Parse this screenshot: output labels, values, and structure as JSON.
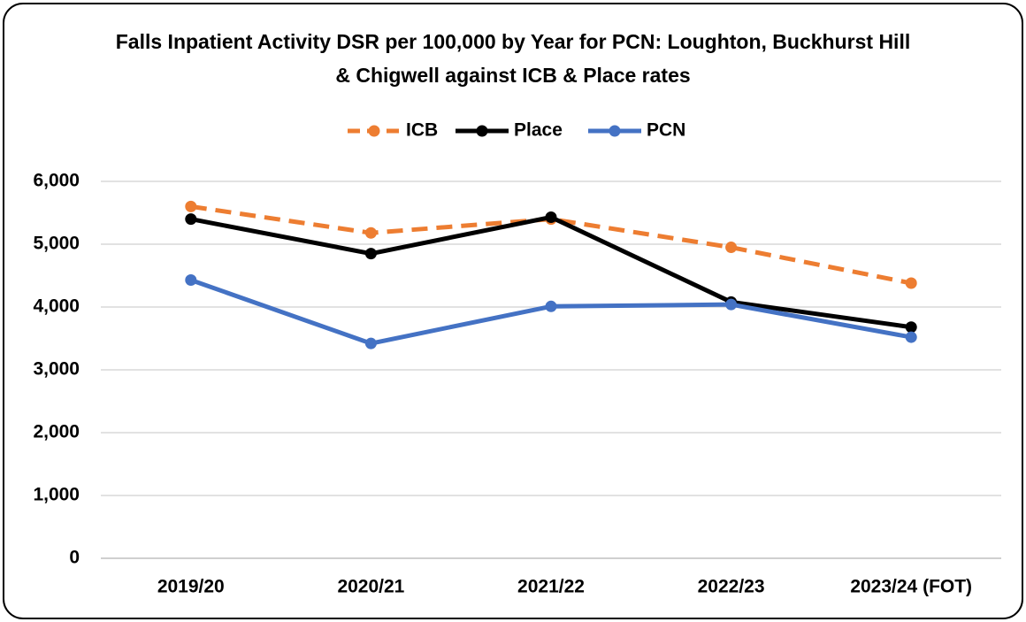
{
  "chart_data": {
    "type": "line",
    "title": "Falls Inpatient Activity DSR per 100,000 by Year for PCN: Loughton, Buckhurst Hill & Chigwell against ICB & Place rates",
    "categories": [
      "2019/20",
      "2020/21",
      "2021/22",
      "2022/23",
      "2023/24 (FOT)"
    ],
    "series": [
      {
        "name": "ICB",
        "color": "#ed7d31",
        "line_style": "dashed",
        "values": [
          5600,
          5180,
          5400,
          4950,
          4380
        ]
      },
      {
        "name": "Place",
        "color": "#000000",
        "line_style": "solid",
        "values": [
          5400,
          4850,
          5430,
          4080,
          3680
        ]
      },
      {
        "name": "PCN",
        "color": "#4472c4",
        "line_style": "solid",
        "values": [
          4430,
          3420,
          4010,
          4040,
          3520
        ]
      }
    ],
    "ylim": [
      0,
      6000
    ],
    "yticks": [
      0,
      {
        "value": 1000,
        "label": "1,000"
      },
      {
        "value": 2000,
        "label": "2,000"
      },
      {
        "value": 3000,
        "label": "3,000"
      },
      {
        "value": 4000,
        "label": "4,000"
      },
      {
        "value": 5000,
        "label": "5,000"
      },
      {
        "value": 6000,
        "label": "6,000"
      }
    ],
    "grid": true,
    "legend": "top"
  }
}
